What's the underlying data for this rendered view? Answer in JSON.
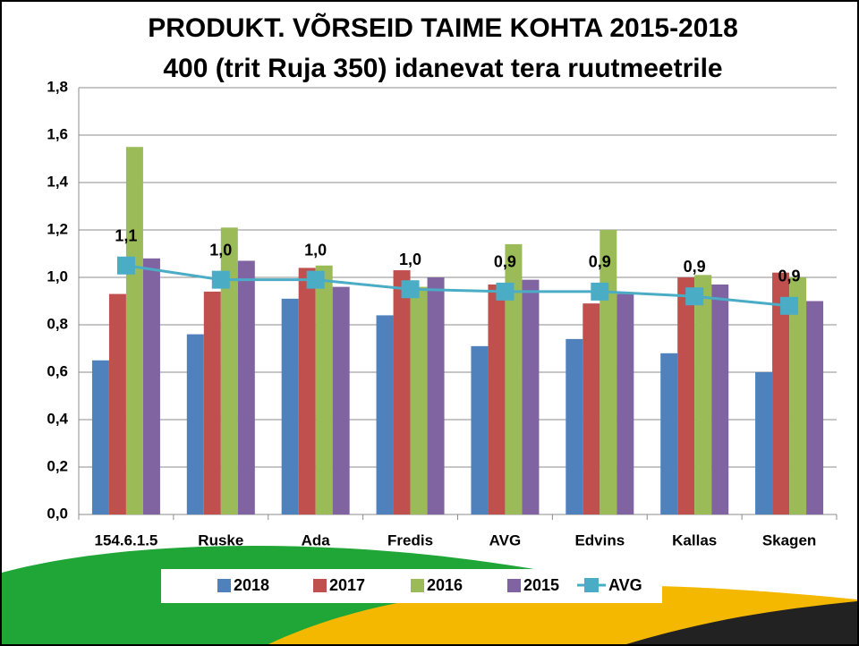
{
  "chart_data": {
    "type": "bar",
    "title": "PRODUKT. VÕRSEID TAIME KOHTA  2015-2018",
    "subtitle": "400 (trit Ruja 350) idanevat tera ruutmeetrile",
    "categories": [
      "154.6.1.5",
      "Ruske",
      "Ada",
      "Fredis",
      "AVG",
      "Edvins",
      "Kallas",
      "Skagen"
    ],
    "series": [
      {
        "name": "2018",
        "color": "#4f81bd",
        "values": [
          0.65,
          0.76,
          0.91,
          0.84,
          0.71,
          0.74,
          0.68,
          0.6
        ]
      },
      {
        "name": "2017",
        "color": "#c0504d",
        "values": [
          0.93,
          0.94,
          1.04,
          1.03,
          0.97,
          0.89,
          1.0,
          1.02
        ]
      },
      {
        "name": "2016",
        "color": "#9bbb59",
        "values": [
          1.55,
          1.21,
          1.05,
          0.96,
          1.14,
          1.2,
          1.01,
          1.0
        ]
      },
      {
        "name": "2015",
        "color": "#8064a2",
        "values": [
          1.08,
          1.07,
          0.96,
          1.0,
          0.99,
          0.93,
          0.97,
          0.9
        ]
      },
      {
        "name": "AVG",
        "type": "line",
        "color": "#4bacc6",
        "values": [
          1.05,
          0.99,
          0.99,
          0.95,
          0.94,
          0.94,
          0.92,
          0.88
        ],
        "value_labels": [
          "1,1",
          "1,0",
          "1,0",
          "1,0",
          "0,9",
          "0,9",
          "0,9",
          "0,9"
        ]
      }
    ],
    "ylim": [
      0,
      1.8
    ],
    "yticks": [
      {
        "value": 0,
        "label": "0,0"
      },
      {
        "value": 0.2,
        "label": "0,2"
      },
      {
        "value": 0.4,
        "label": "0,4"
      },
      {
        "value": 0.6,
        "label": "0,6"
      },
      {
        "value": 0.8,
        "label": "0,8"
      },
      {
        "value": 1.0,
        "label": "1,0"
      },
      {
        "value": 1.2,
        "label": "1,2"
      },
      {
        "value": 1.4,
        "label": "1,4"
      },
      {
        "value": 1.6,
        "label": "1,6"
      },
      {
        "value": 1.8,
        "label": "1,8"
      }
    ],
    "grid": true,
    "legend": "bottom"
  }
}
